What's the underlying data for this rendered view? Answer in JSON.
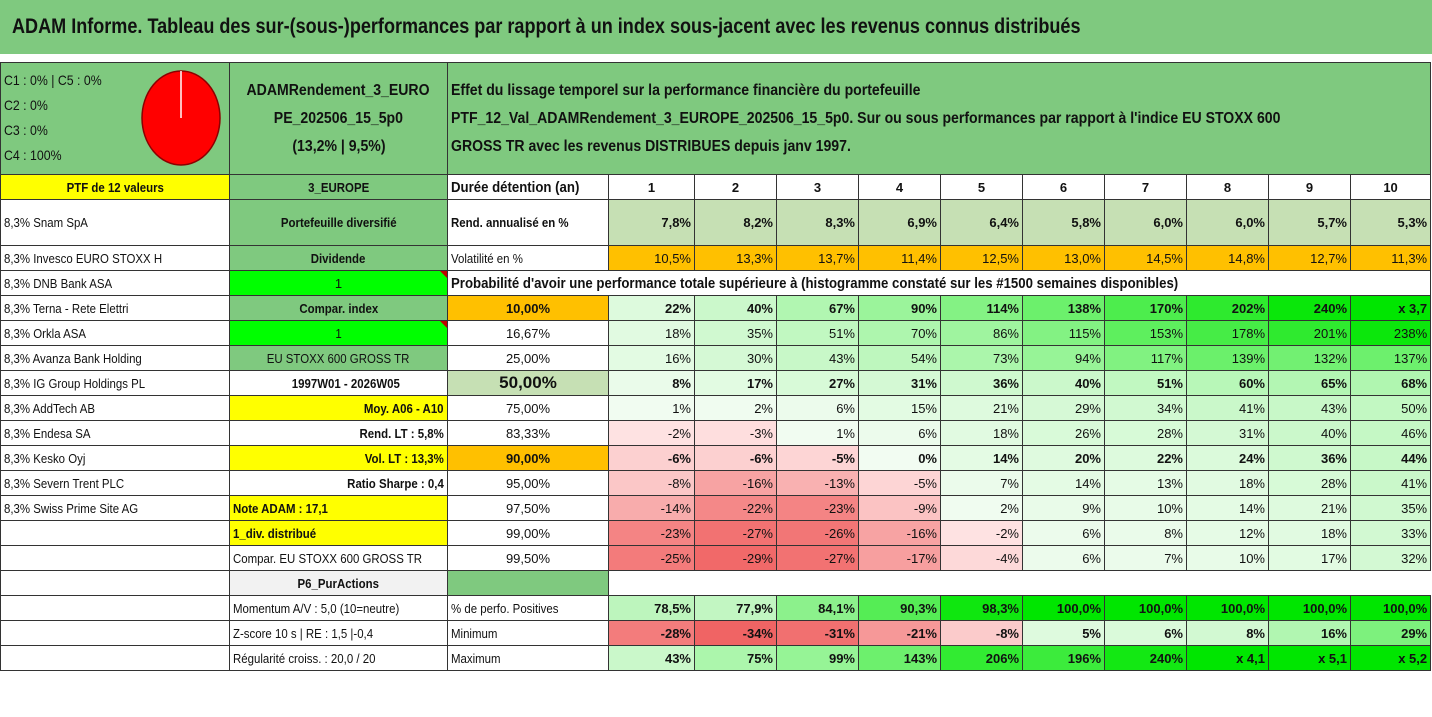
{
  "title": "ADAM Informe. Tableau des sur-(sous-)performances par rapport à un index sous-jacent avec les revenus connus distribués",
  "header": {
    "pie_legend": [
      "C1 : 0% | C5 : 0%",
      "C2 : 0%",
      "C3 : 0%",
      "C4 : 100%"
    ],
    "portfolio_name_lines": [
      "ADAMRendement_3_EURO",
      "PE_202506_15_5p0",
      "(13,2% | 9,5%)"
    ],
    "description_lines": [
      "Effet du lissage temporel sur la performance financière du portefeuille",
      "PTF_12_Val_ADAMRendement_3_EUROPE_202506_15_5p0. Sur ou sous performances par rapport à l'indice EU STOXX 600",
      "GROSS TR avec les revenus DISTRIBUES depuis janv 1997."
    ]
  },
  "ptf_label": "PTF de 12 valeurs",
  "region_label": "3_EUROPE",
  "duration_label": "Durée détention (an)",
  "years": [
    "1",
    "2",
    "3",
    "4",
    "5",
    "6",
    "7",
    "8",
    "9",
    "10"
  ],
  "holdings": [
    "8,3% Snam SpA",
    "8,3% Invesco EURO STOXX H",
    "8,3% DNB Bank ASA",
    "8,3% Terna - Rete Elettri",
    "8,3% Orkla ASA",
    "8,3% Avanza Bank Holding",
    "8,3% IG Group Holdings PL",
    "8,3% AddTech AB",
    "8,3% Endesa SA",
    "8,3% Kesko Oyj",
    "8,3% Severn Trent PLC",
    "8,3% Swiss Prime Site AG"
  ],
  "mid": {
    "diversified": "Portefeuille diversifié",
    "dividend": "Dividende",
    "one_a": "1",
    "compar_index": "Compar. index",
    "one_b": "1",
    "index_name": "EU STOXX 600 GROSS TR",
    "period": "1997W01 - 2026W05",
    "avg": "Moy. A06 - A10",
    "rend_lt": "Rend. LT : 5,8%",
    "vol_lt": "Vol. LT : 13,3%",
    "sharpe": "Ratio Sharpe : 0,4",
    "note": "Note ADAM : 17,1",
    "div": "1_div. distribué",
    "compar_full": "Compar. EU STOXX 600 GROSS TR",
    "p6": "P6_PurActions"
  },
  "rend_label": "Rend. annualisé en %",
  "rend_values": [
    "7,8%",
    "8,2%",
    "8,3%",
    "6,9%",
    "6,4%",
    "5,8%",
    "6,0%",
    "6,0%",
    "5,7%",
    "5,3%"
  ],
  "vol_label": "Volatilité en %",
  "vol_values": [
    "10,5%",
    "13,3%",
    "13,7%",
    "11,4%",
    "12,5%",
    "13,0%",
    "14,5%",
    "14,8%",
    "12,7%",
    "11,3%"
  ],
  "prob_title": "Probabilité d'avoir une performance totale supérieure à (histogramme constaté sur les #1500 semaines disponibles)",
  "prob_rows": [
    {
      "p": "10,00%",
      "vals": [
        "22%",
        "40%",
        "67%",
        "90%",
        "114%",
        "138%",
        "170%",
        "202%",
        "240%",
        "x 3,7"
      ]
    },
    {
      "p": "16,67%",
      "vals": [
        "18%",
        "35%",
        "51%",
        "70%",
        "86%",
        "115%",
        "153%",
        "178%",
        "201%",
        "238%"
      ]
    },
    {
      "p": "25,00%",
      "vals": [
        "16%",
        "30%",
        "43%",
        "54%",
        "73%",
        "94%",
        "117%",
        "139%",
        "132%",
        "137%"
      ]
    },
    {
      "p": "50,00%",
      "vals": [
        "8%",
        "17%",
        "27%",
        "31%",
        "36%",
        "40%",
        "51%",
        "60%",
        "65%",
        "68%"
      ]
    },
    {
      "p": "75,00%",
      "vals": [
        "1%",
        "2%",
        "6%",
        "15%",
        "21%",
        "29%",
        "34%",
        "41%",
        "43%",
        "50%"
      ]
    },
    {
      "p": "83,33%",
      "vals": [
        "-2%",
        "-3%",
        "1%",
        "6%",
        "18%",
        "26%",
        "28%",
        "31%",
        "40%",
        "46%"
      ]
    },
    {
      "p": "90,00%",
      "vals": [
        "-6%",
        "-6%",
        "-5%",
        "0%",
        "14%",
        "20%",
        "22%",
        "24%",
        "36%",
        "44%"
      ]
    },
    {
      "p": "95,00%",
      "vals": [
        "-8%",
        "-16%",
        "-13%",
        "-5%",
        "7%",
        "14%",
        "13%",
        "18%",
        "28%",
        "41%"
      ]
    },
    {
      "p": "97,50%",
      "vals": [
        "-14%",
        "-22%",
        "-23%",
        "-9%",
        "2%",
        "9%",
        "10%",
        "14%",
        "21%",
        "35%"
      ]
    },
    {
      "p": "99,00%",
      "vals": [
        "-23%",
        "-27%",
        "-26%",
        "-16%",
        "-2%",
        "6%",
        "8%",
        "12%",
        "18%",
        "33%"
      ]
    },
    {
      "p": "99,50%",
      "vals": [
        "-25%",
        "-29%",
        "-27%",
        "-17%",
        "-4%",
        "6%",
        "7%",
        "10%",
        "17%",
        "32%"
      ]
    }
  ],
  "bottom": {
    "momentum": "Momentum A/V : 5,0 (10=neutre)",
    "zscore": "Z-score 10 s | RE : 1,5 |-0,4",
    "regularite": "Régularité croiss. : 20,0 / 20",
    "pos_label": "% de perfo. Positives",
    "pos_values": [
      "78,5%",
      "77,9%",
      "84,1%",
      "90,3%",
      "98,3%",
      "100,0%",
      "100,0%",
      "100,0%",
      "100,0%",
      "100,0%"
    ],
    "min_label": "Minimum",
    "min_values": [
      "-28%",
      "-34%",
      "-31%",
      "-21%",
      "-8%",
      "5%",
      "6%",
      "8%",
      "16%",
      "29%"
    ],
    "max_label": "Maximum",
    "max_values": [
      "43%",
      "75%",
      "99%",
      "143%",
      "206%",
      "196%",
      "240%",
      "x 4,1",
      "x 5,1",
      "x 5,2"
    ]
  },
  "colors": {
    "header_green": "#7fc97f",
    "yellow": "#ffff00",
    "orange": "#ffc000",
    "lime": "#00ff00",
    "red_text": "#e00000",
    "pie_red": "#ff0000"
  }
}
